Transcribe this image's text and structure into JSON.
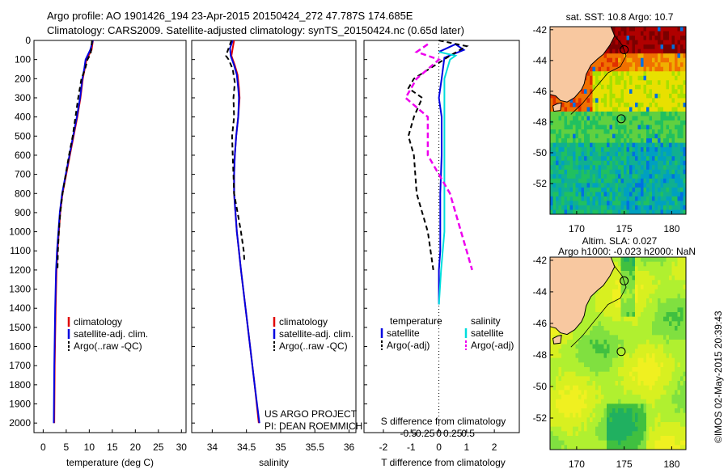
{
  "title_line1": "Argo profile: AO 1901426_194 23-Apr-2015 20150424_272 47.787S 174.685E",
  "title_line2": "Climatology: CARS2009. Satellite-adjusted climatology: synTS_20150424.nc (0.65d later)",
  "side_stamp": "©IMOS 02-May-2015 20:39:43",
  "colors": {
    "climatology": "#e00000",
    "satellite": "#0000e0",
    "argo": "#000000",
    "sal_satellite": "#00dddd",
    "sal_argo": "#ee00ee"
  },
  "chart_data": [
    {
      "id": "temperature",
      "type": "line",
      "xlabel": "temperature (deg C)",
      "xlim": [
        -2,
        31
      ],
      "ylim": [
        2050,
        0
      ],
      "xticks": [
        0,
        5,
        10,
        15,
        20,
        25,
        30
      ],
      "yticks": [
        0,
        100,
        200,
        300,
        400,
        500,
        600,
        700,
        800,
        900,
        1000,
        1100,
        1200,
        1300,
        1400,
        1500,
        1600,
        1700,
        1800,
        1900,
        2000
      ],
      "legend": [
        "climatology",
        "satellite-adj. clim.",
        "Argo(..raw -QC)"
      ],
      "series": [
        {
          "name": "climatology",
          "x": [
            10.8,
            10.5,
            9.4,
            9.0,
            8.6,
            8.1,
            7.4,
            6.6,
            5.8,
            5.0,
            4.2,
            3.7,
            3.4,
            3.1,
            2.9,
            2.7,
            2.5,
            2.4
          ],
          "y": [
            0,
            50,
            100,
            150,
            200,
            300,
            400,
            500,
            600,
            700,
            800,
            900,
            1000,
            1100,
            1200,
            1400,
            1700,
            2000
          ]
        },
        {
          "name": "satellite-adj. clim.",
          "x": [
            10.8,
            10.2,
            9.2,
            8.9,
            8.5,
            8.0,
            7.3,
            6.5,
            5.7,
            4.9,
            4.1,
            3.6,
            3.3,
            3.0,
            2.8,
            2.6,
            2.4,
            2.3
          ],
          "y": [
            0,
            50,
            100,
            150,
            200,
            300,
            400,
            500,
            600,
            700,
            800,
            900,
            1000,
            1100,
            1200,
            1400,
            1700,
            2000
          ]
        },
        {
          "name": "Argo(..raw -QC)",
          "x": [
            10.6,
            10.3,
            9.6,
            9.1,
            8.3,
            7.6,
            7.0,
            6.4,
            5.6,
            4.9,
            4.2,
            3.7,
            3.4,
            3.2,
            3.1
          ],
          "y": [
            0,
            70,
            100,
            150,
            200,
            300,
            400,
            500,
            600,
            700,
            800,
            900,
            1000,
            1100,
            1200
          ]
        }
      ]
    },
    {
      "id": "salinity",
      "type": "line",
      "xlabel": "salinity",
      "xlim": [
        33.7,
        36.1
      ],
      "ylim": [
        2050,
        0
      ],
      "xticks": [
        34,
        34.5,
        35,
        35.5,
        36
      ],
      "legend": [
        "climatology",
        "satellite-adj. clim.",
        "Argo(..raw -QC)"
      ],
      "annotation": [
        "US ARGO PROJECT",
        "PI: DEAN ROEMMICH"
      ],
      "series": [
        {
          "name": "climatology",
          "x": [
            34.32,
            34.3,
            34.28,
            34.33,
            34.37,
            34.39,
            34.4,
            34.38,
            34.35,
            34.33,
            34.32,
            34.32,
            34.34,
            34.36,
            34.39,
            34.42,
            34.52,
            34.62,
            34.68
          ],
          "y": [
            0,
            40,
            80,
            130,
            180,
            250,
            300,
            400,
            500,
            600,
            700,
            800,
            900,
            1000,
            1100,
            1200,
            1500,
            1800,
            2000
          ]
        },
        {
          "name": "satellite-adj. clim.",
          "x": [
            34.3,
            34.26,
            34.27,
            34.32,
            34.36,
            34.38,
            34.39,
            34.38,
            34.35,
            34.33,
            34.32,
            34.32,
            34.34,
            34.36,
            34.39,
            34.42,
            34.52,
            34.62,
            34.69
          ],
          "y": [
            0,
            40,
            80,
            130,
            180,
            250,
            300,
            400,
            500,
            600,
            700,
            800,
            900,
            1000,
            1100,
            1200,
            1500,
            1800,
            2000
          ]
        },
        {
          "name": "Argo(..raw -QC)",
          "x": [
            34.28,
            34.24,
            34.2,
            34.24,
            34.3,
            34.33,
            34.31,
            34.32,
            34.29,
            34.3,
            34.31,
            34.32,
            34.37,
            34.42,
            34.46,
            34.47
          ],
          "y": [
            0,
            40,
            80,
            100,
            150,
            220,
            300,
            400,
            500,
            600,
            700,
            800,
            900,
            1000,
            1100,
            1150
          ]
        }
      ]
    },
    {
      "id": "differences",
      "type": "line",
      "xlabel": "T difference from climatology",
      "xlabel_top": "S difference from climatology",
      "xlim": [
        -2.7,
        2.9
      ],
      "ylim": [
        2050,
        0
      ],
      "xticks": [
        -2,
        -1,
        0,
        1,
        2
      ],
      "xticks_s": [
        -0.5,
        -0.25,
        0,
        0.25,
        0.5
      ],
      "legend_titles": [
        "temperature",
        "salinity"
      ],
      "legend": [
        "satellite",
        "Argo(-adj)",
        "satellite",
        "Argo(-adj)"
      ],
      "series": [
        {
          "name": "temperature satellite",
          "x": [
            0.0,
            0.6,
            0.9,
            0.2,
            0.1,
            0.0,
            0.1,
            0.1,
            0.05,
            0.05,
            0.05,
            0.0,
            0.0
          ],
          "y": [
            60,
            20,
            50,
            90,
            200,
            300,
            400,
            600,
            800,
            1000,
            1100,
            1200,
            1380
          ]
        },
        {
          "name": "temperature Argo(-adj)",
          "x": [
            0.0,
            1.0,
            0.4,
            -0.9,
            -1.1,
            -0.6,
            -0.9,
            -1.1,
            -0.9,
            -0.8,
            -0.4,
            -0.3,
            -0.2
          ],
          "y": [
            0,
            30,
            80,
            200,
            250,
            300,
            400,
            500,
            600,
            800,
            1000,
            1100,
            1200
          ]
        },
        {
          "name": "salinity satellite",
          "x": [
            0.0,
            0.15,
            0.1,
            0.05,
            0.05,
            0.05,
            0.05,
            0.02,
            0.0
          ],
          "y": [
            60,
            80,
            100,
            200,
            400,
            700,
            1000,
            1200,
            1380
          ]
        },
        {
          "name": "salinity Argo(-adj)",
          "x": [
            -0.1,
            -0.2,
            0.0,
            -0.2,
            -0.3,
            -0.1,
            -0.1,
            0.1,
            0.2,
            0.25,
            0.3
          ],
          "y": [
            20,
            60,
            100,
            200,
            300,
            400,
            600,
            800,
            1000,
            1100,
            1200
          ]
        }
      ]
    },
    {
      "id": "sst_map",
      "type": "heatmap",
      "title": "sat. SST: 10.8 Argo: 10.7",
      "xticks": [
        170,
        175,
        180
      ],
      "yticks": [
        -42,
        -44,
        -46,
        -48,
        -50,
        -52
      ]
    },
    {
      "id": "sla_map",
      "type": "heatmap",
      "title_line1": "Altim. SLA: 0.027",
      "title_line2": "Argo h1000: -0.023 h2000: NaN",
      "xticks": [
        170,
        175,
        180
      ],
      "yticks": [
        -42,
        -44,
        -46,
        -48,
        -50,
        -52
      ]
    }
  ]
}
